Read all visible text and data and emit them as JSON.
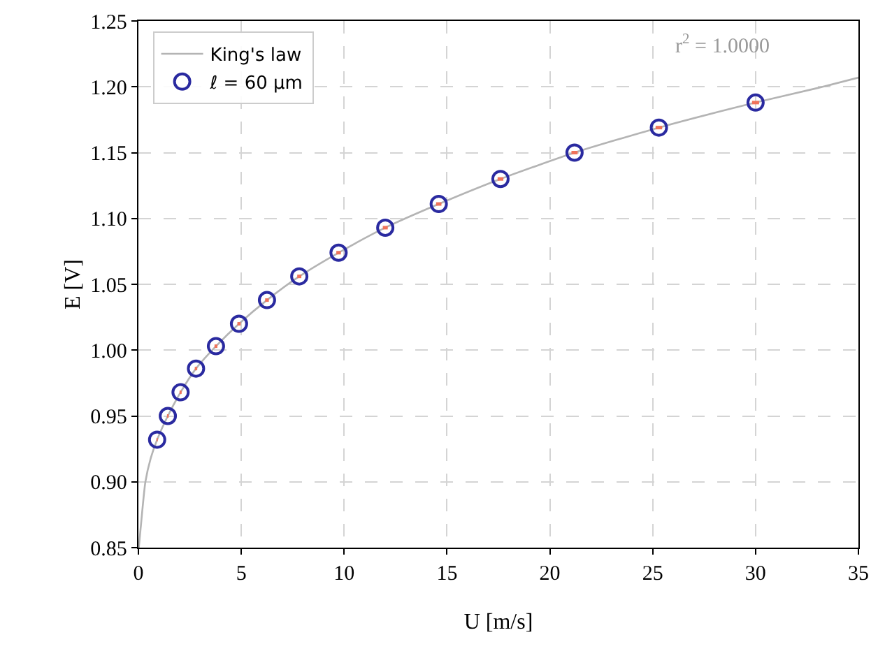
{
  "chart_data": {
    "type": "scatter",
    "xlabel": "U [m/s]",
    "ylabel": "E [V]",
    "xlim": [
      0,
      35
    ],
    "xticks": [
      0,
      5,
      10,
      15,
      20,
      25,
      30,
      35
    ],
    "ylim": [
      0.85,
      1.25
    ],
    "yticks": [
      {
        "value": 0.85,
        "label": "0.85"
      },
      {
        "value": 0.9,
        "label": "0.90"
      },
      {
        "value": 0.95,
        "label": "0.95"
      },
      {
        "value": 1.0,
        "label": "1.00"
      },
      {
        "value": 1.05,
        "label": "1.05"
      },
      {
        "value": 1.1,
        "label": "1.10"
      },
      {
        "value": 1.15,
        "label": "1.15"
      },
      {
        "value": 1.2,
        "label": "1.20"
      },
      {
        "value": 1.25,
        "label": "1.25"
      }
    ],
    "grid": true,
    "legend": "top left",
    "marker": "circle",
    "annotations": [
      "r$^{2}$ = 1.0000"
    ],
    "series": [
      {
        "name": "King's law",
        "type": "line",
        "color": "#b4b4b4",
        "line_style": "solid",
        "marker": "none",
        "x": [
          0.02,
          0.11,
          0.34,
          0.6,
          0.91,
          1.43,
          2.05,
          2.8,
          3.77,
          4.89,
          6.25,
          7.82,
          9.73,
          12.0,
          14.6,
          17.6,
          21.2,
          25.3,
          30.0,
          33.0,
          35.0
        ],
        "values": [
          0.85,
          0.865,
          0.9,
          0.918,
          0.932,
          0.95,
          0.968,
          0.986,
          1.003,
          1.02,
          1.038,
          1.056,
          1.074,
          1.093,
          1.111,
          1.13,
          1.15,
          1.169,
          1.188,
          1.199,
          1.207
        ]
      },
      {
        "name": "ℓ = 60 μm",
        "color": "#2a2aa0",
        "x": [
          0.91,
          1.43,
          2.05,
          2.8,
          3.77,
          4.89,
          6.25,
          7.82,
          9.73,
          12.0,
          14.6,
          17.6,
          21.2,
          25.3,
          30.0
        ],
        "values": [
          0.932,
          0.95,
          0.968,
          0.986,
          1.003,
          1.02,
          1.038,
          1.056,
          1.074,
          1.093,
          1.111,
          1.13,
          1.15,
          1.169,
          1.188
        ],
        "xerrors": [
          0.03,
          0.04,
          0.05,
          0.06,
          0.07,
          0.08,
          0.09,
          0.1,
          0.11,
          0.12,
          0.13,
          0.14,
          0.15,
          0.16,
          0.17
        ]
      }
    ]
  }
}
